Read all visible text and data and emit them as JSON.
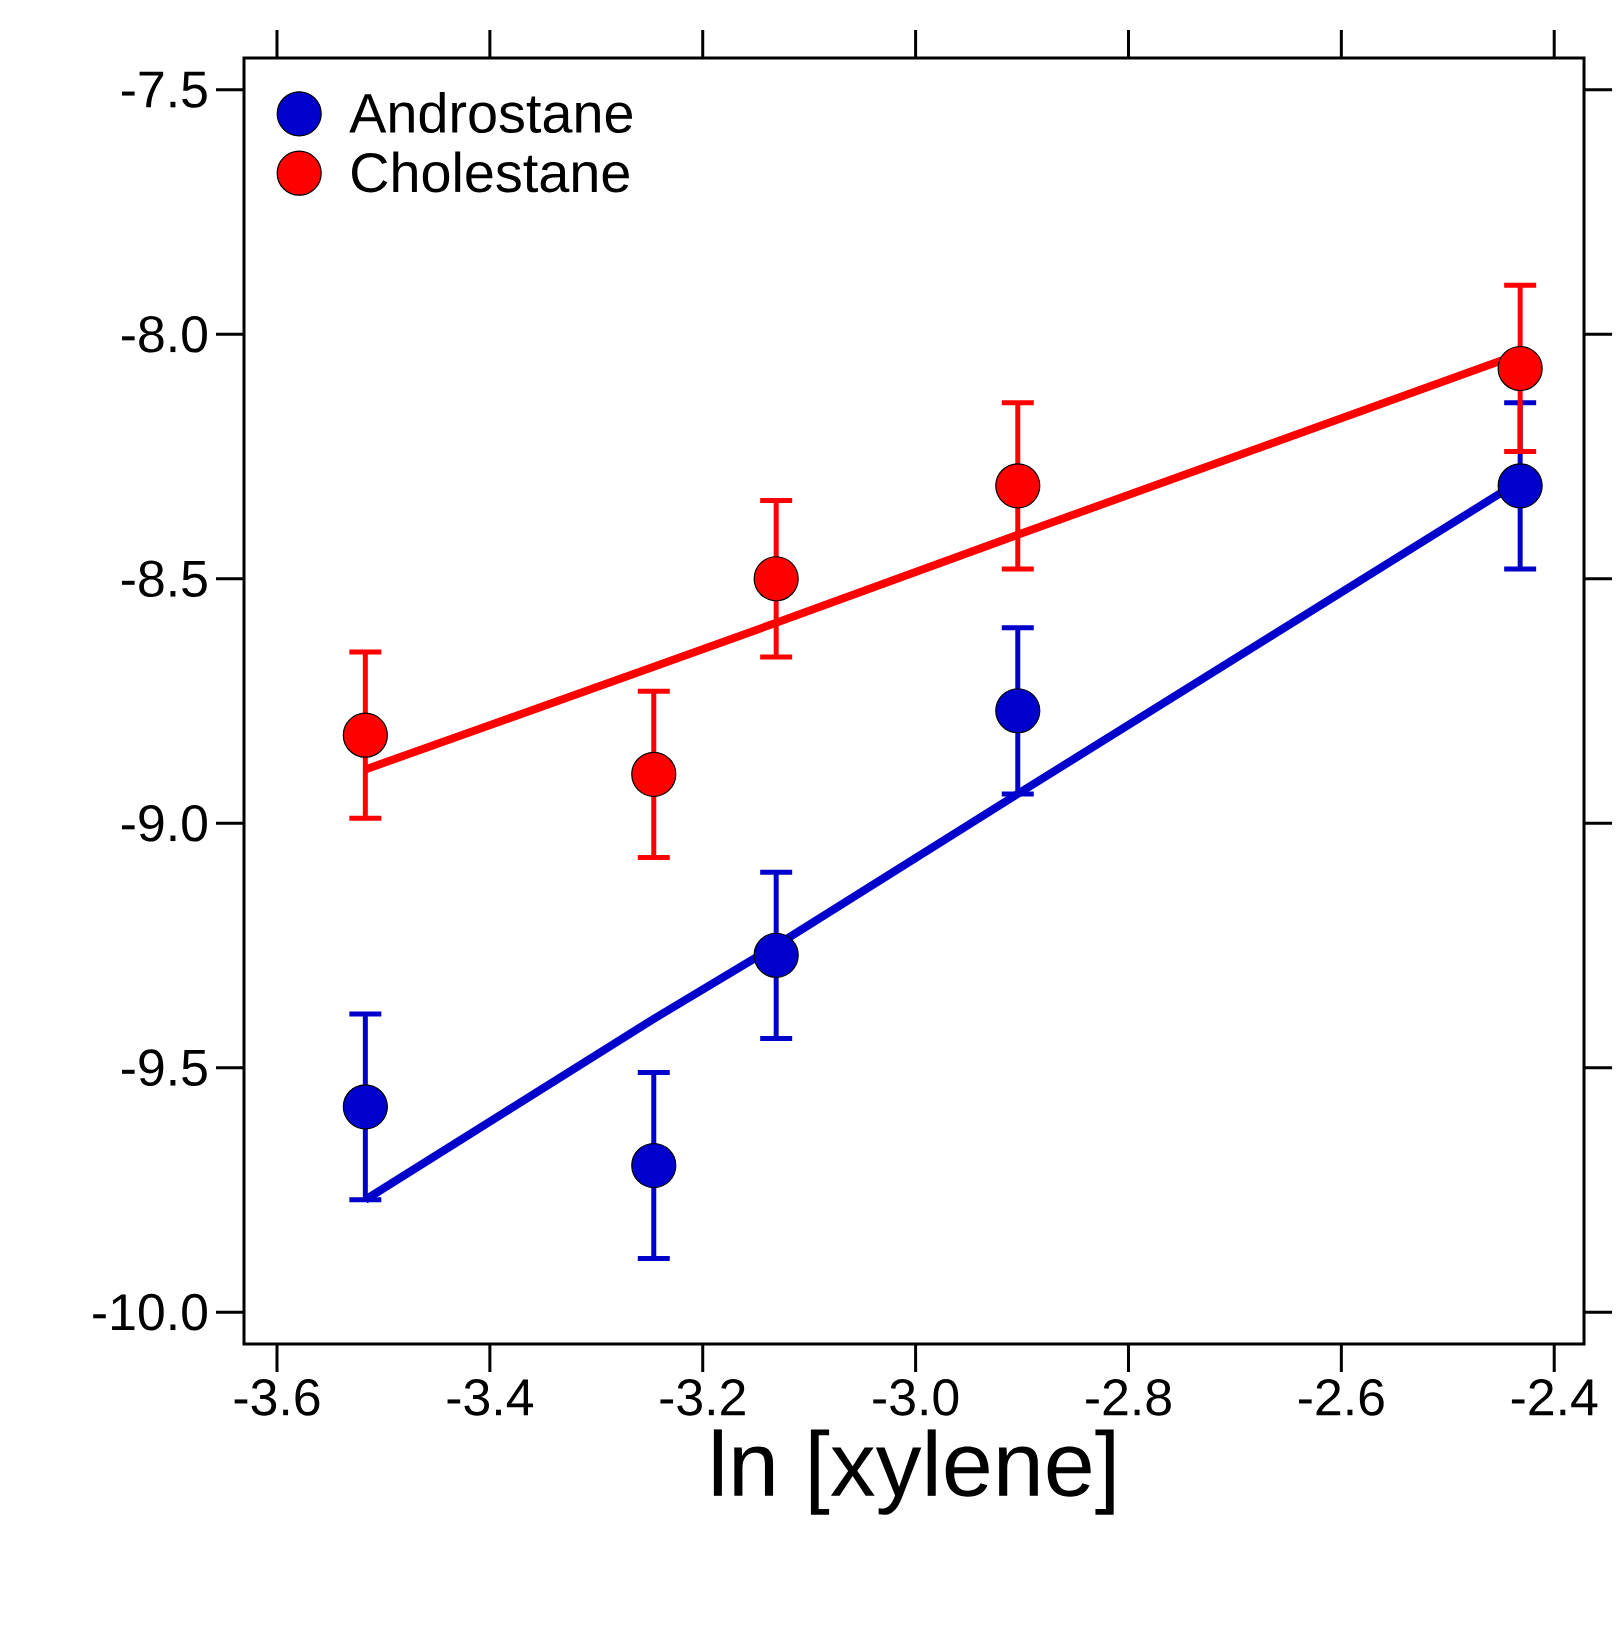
{
  "chart_data": {
    "type": "scatter",
    "xlabel": "ln [xylene]",
    "xlim": [
      -3.631,
      -2.372
    ],
    "xticks": [
      {
        "value": -3.6,
        "label": "-3.6"
      },
      {
        "value": -3.4,
        "label": "-3.4"
      },
      {
        "value": -3.2,
        "label": "-3.2"
      },
      {
        "value": -3.0,
        "label": "-3.0"
      },
      {
        "value": -2.8,
        "label": "-2.8"
      },
      {
        "value": -2.6,
        "label": "-2.6"
      },
      {
        "value": -2.4,
        "label": "-2.4"
      }
    ],
    "ylim": [
      -10.065,
      -7.435
    ],
    "yticks": [
      {
        "value": -10.0,
        "label": "-10.0"
      },
      {
        "value": -9.5,
        "label": "-9.5"
      },
      {
        "value": -9.0,
        "label": "-9.0"
      },
      {
        "value": -8.5,
        "label": "-8.5"
      },
      {
        "value": -8.0,
        "label": "-8.0"
      },
      {
        "value": -7.5,
        "label": "-7.5"
      }
    ],
    "legend": "top left",
    "x": [
      -3.517,
      -3.246,
      -3.131,
      -2.904,
      -2.432
    ],
    "series": [
      {
        "name": "Androstane",
        "color": "#0000cc",
        "marker": "circle",
        "values": [
          -9.58,
          -9.7,
          -9.27,
          -8.77,
          -8.31
        ],
        "errors": [
          0.19,
          0.19,
          0.17,
          0.17,
          0.17
        ]
      },
      {
        "name": "Cholestane",
        "color": "#ff0000",
        "marker": "circle",
        "values": [
          -8.82,
          -8.9,
          -8.5,
          -8.31,
          -8.07
        ],
        "errors": [
          0.17,
          0.17,
          0.16,
          0.17,
          0.17
        ]
      },
      {
        "type": "line",
        "color": "#0000cc",
        "marker": "none",
        "values": [
          -9.77,
          -9.4,
          -9.25,
          -8.94,
          -8.3
        ]
      },
      {
        "type": "line",
        "color": "#ff0000",
        "marker": "none",
        "values": [
          -8.89,
          -8.68,
          -8.59,
          -8.41,
          -8.04
        ]
      }
    ]
  }
}
